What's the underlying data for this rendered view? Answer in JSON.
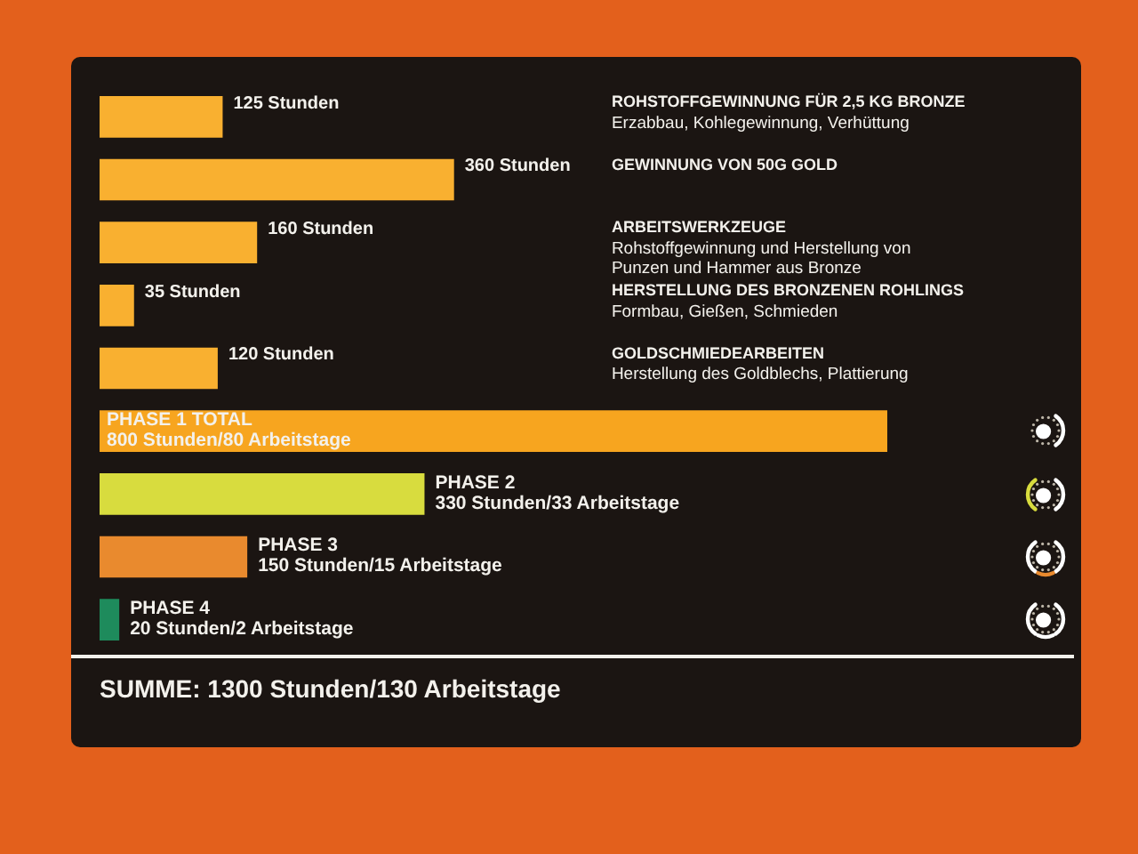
{
  "chart_data": {
    "type": "bar",
    "orientation": "horizontal",
    "categories": [
      "ROHSTOFFGEWINNUNG FÜR 2,5 KG BRONZE\nErzabbau, Kohlegewinnung, Verhüttung",
      "GEWINNUNG VON 50G GOLD",
      "ARBEITSWERKZEUGE\nRohstoffgewinnung und Herstellung von\nPunzen und Hammer aus Bronze",
      "HERSTELLUNG DES BRONZENEN ROHLINGS\nFormbau, Gießen, Schmieden",
      "GOLDSCHMIEDEARBEITEN\nHerstellung des Goldblechs, Plattierung",
      "PHASE 1 TOTAL",
      "PHASE 2",
      "PHASE 3",
      "PHASE 4"
    ],
    "series": [
      {
        "color": "#f9b030",
        "values": [
          125,
          360,
          160,
          35,
          120,
          null,
          null,
          null,
          null
        ],
        "value_labels": [
          "125 Stunden",
          "360 Stunden",
          "160 Stunden",
          "35 Stunden",
          "120 Stunden",
          null,
          null,
          null,
          null
        ]
      },
      {
        "colors": [
          null,
          null,
          null,
          null,
          null,
          "#f7a51f",
          "#d8dc3e",
          "#e98a2e",
          "#1e8b5c"
        ],
        "values": [
          null,
          null,
          null,
          null,
          null,
          800,
          330,
          150,
          20
        ],
        "value_labels": [
          null,
          null,
          null,
          null,
          null,
          "800 Stunden/80 Arbeitstage",
          "330 Stunden/33 Arbeitstage",
          "150 Stunden/15 Arbeitstage",
          "20 Stunden/2 Arbeitstage"
        ]
      }
    ],
    "tick_labels": "y",
    "annotations": [
      "SUMME: 1300 Stunden/130 Arbeitstage"
    ]
  }
}
